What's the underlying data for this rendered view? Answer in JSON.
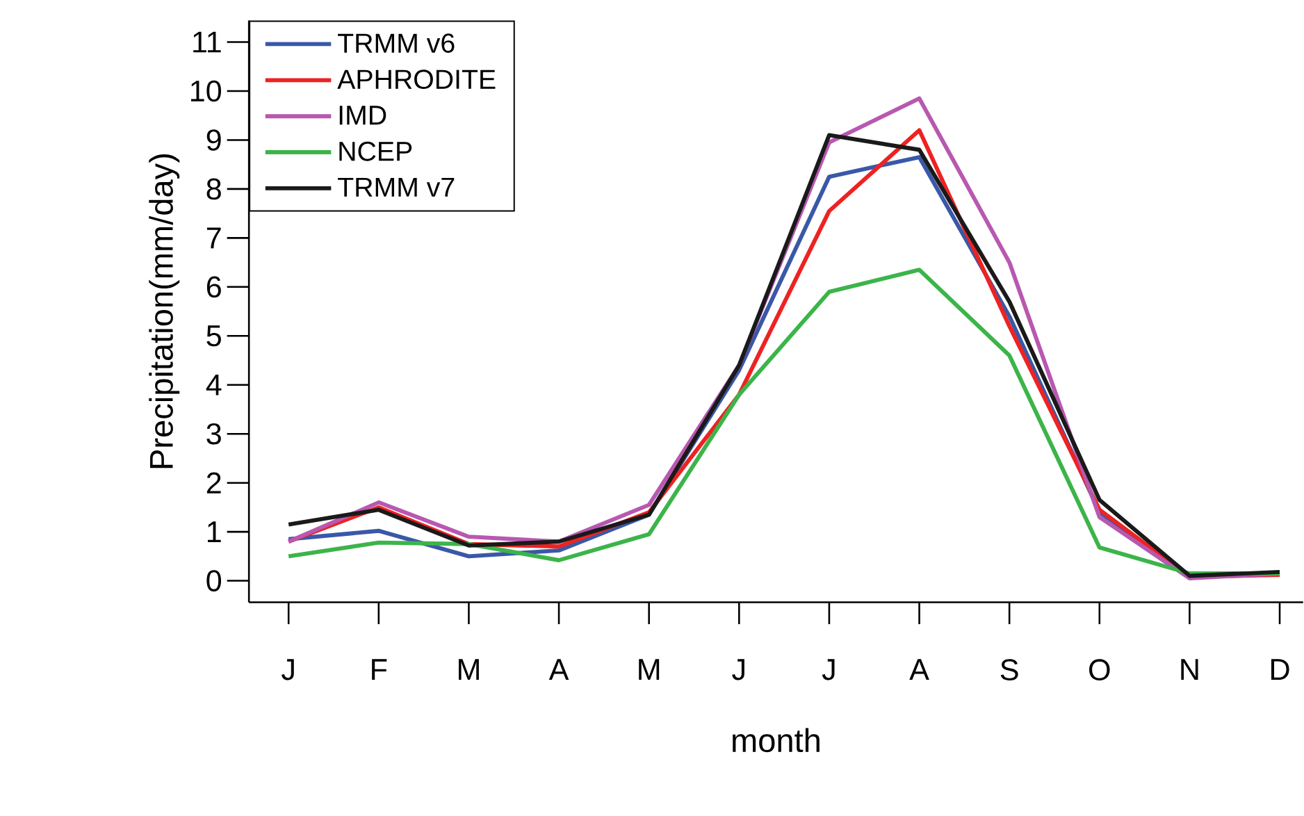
{
  "chart_data": {
    "type": "line",
    "xlabel": "month",
    "ylabel": "Precipitation(mm/day)",
    "categories": [
      "J",
      "F",
      "M",
      "A",
      "M",
      "J",
      "J",
      "A",
      "S",
      "O",
      "N",
      "D"
    ],
    "ylim": [
      -0.44,
      11.44
    ],
    "yticks": [
      0,
      1,
      2,
      3,
      4,
      5,
      6,
      7,
      8,
      9,
      10,
      11
    ],
    "grid": false,
    "legend": "top left",
    "marker": "none",
    "line_style": "solid",
    "series": [
      {
        "name": "TRMM v6",
        "color": "#3a58a8",
        "values": [
          0.85,
          1.02,
          0.5,
          0.62,
          1.35,
          4.3,
          8.25,
          8.65,
          5.4,
          1.4,
          0.1,
          0.15
        ]
      },
      {
        "name": "APHRODITE",
        "color": "#ee2222",
        "values": [
          0.8,
          1.5,
          0.75,
          0.7,
          1.4,
          3.8,
          7.55,
          9.2,
          5.2,
          1.45,
          0.08,
          0.12
        ]
      },
      {
        "name": "IMD",
        "color": "#b858b0",
        "values": [
          0.8,
          1.6,
          0.9,
          0.8,
          1.55,
          4.4,
          8.95,
          9.85,
          6.5,
          1.3,
          0.05,
          0.15
        ]
      },
      {
        "name": "NCEP",
        "color": "#3cb44a",
        "values": [
          0.5,
          0.78,
          0.75,
          0.42,
          0.95,
          3.8,
          5.9,
          6.35,
          4.6,
          0.68,
          0.15,
          0.15
        ]
      },
      {
        "name": "TRMM v7",
        "color": "#1a1a1a",
        "values": [
          1.15,
          1.45,
          0.72,
          0.8,
          1.35,
          4.4,
          9.1,
          8.8,
          5.7,
          1.65,
          0.1,
          0.18
        ]
      }
    ]
  }
}
